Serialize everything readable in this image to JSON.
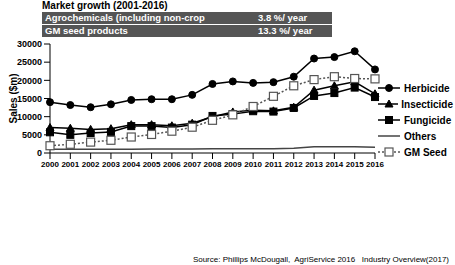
{
  "chart_data": {
    "type": "line",
    "title": "Market growth (2001-2016)",
    "annotations": [
      {
        "text": "Agrochemicals (including non-crop products)",
        "label": "3.8 %/ year"
      },
      {
        "text": "GM seed products",
        "label": "13.3 %/ year"
      }
    ],
    "source": "Source: Phillips McDougall,  AgriService 2016   Industry Overview(2017)",
    "y_label": "Sales ($m)",
    "categories": [
      "2000",
      "2001",
      "2002",
      "2003",
      "2004",
      "2005",
      "2006",
      "2007",
      "2008",
      "2009",
      "2010",
      "2011",
      "2012",
      "2013",
      "2014",
      "2015",
      "2016"
    ],
    "series": [
      {
        "name": "Herbicide",
        "color": "#000000",
        "marker": "circle",
        "line_style": "solid",
        "values": [
          14000,
          13200,
          12600,
          13400,
          14600,
          14800,
          14800,
          16000,
          19000,
          19700,
          19300,
          19500,
          21000,
          26000,
          26400,
          28000,
          23000
        ]
      },
      {
        "name": "Insecticide",
        "color": "#000000",
        "marker": "triangle",
        "line_style": "solid",
        "values": [
          7000,
          6800,
          6500,
          6700,
          7800,
          7800,
          7500,
          8200,
          10000,
          11300,
          11800,
          11600,
          12600,
          17300,
          18500,
          19600,
          16300
        ]
      },
      {
        "name": "Fungicide",
        "color": "#000000",
        "marker": "square",
        "line_style": "solid",
        "values": [
          5700,
          5000,
          5500,
          5800,
          7400,
          7400,
          7000,
          7800,
          10200,
          10700,
          11500,
          11400,
          12400,
          15700,
          16500,
          18000,
          15400
        ]
      },
      {
        "name": "Others",
        "color": "#444444",
        "marker": "none",
        "line_style": "solid",
        "values": [
          1000,
          1000,
          1000,
          1000,
          1000,
          1100,
          1100,
          1100,
          1200,
          1200,
          1200,
          1200,
          1300,
          1700,
          1700,
          1700,
          1600
        ]
      },
      {
        "name": "GM Seed",
        "color": "#555555",
        "marker": "square_open",
        "line_style": "dotted",
        "values": [
          2000,
          2400,
          3000,
          3500,
          4400,
          5100,
          6000,
          7100,
          9000,
          10500,
          12800,
          15600,
          18500,
          20200,
          21000,
          20500,
          20400
        ]
      }
    ],
    "ylim": [
      0,
      30000
    ],
    "yticks": [
      0,
      5000,
      10000,
      15000,
      20000,
      25000,
      30000
    ],
    "grid": false,
    "legend": "right"
  }
}
